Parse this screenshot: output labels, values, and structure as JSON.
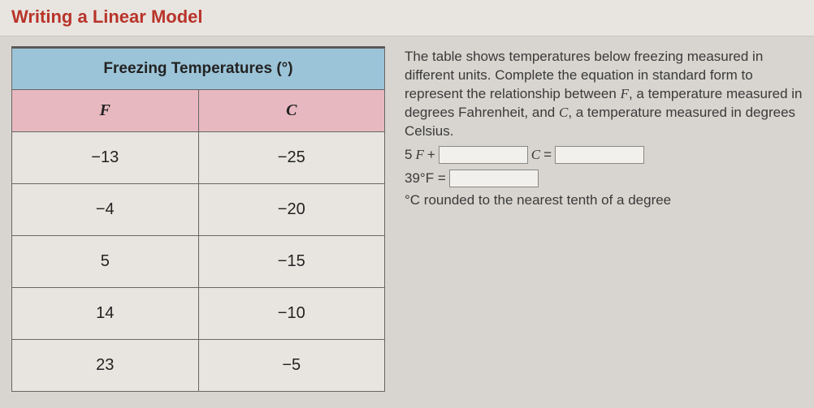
{
  "header": {
    "title": "Writing a Linear Model"
  },
  "table": {
    "title": "Freezing Temperatures (°)",
    "columns": {
      "col1": "F",
      "col2": "C"
    },
    "rows": [
      {
        "f": "−13",
        "c": "−25"
      },
      {
        "f": "−4",
        "c": "−20"
      },
      {
        "f": "5",
        "c": "−15"
      },
      {
        "f": "14",
        "c": "−10"
      },
      {
        "f": "23",
        "c": "−5"
      }
    ]
  },
  "prompt": {
    "text1": "The table shows temperatures below freezing measured in different units. Complete the equation in standard form to represent the relationship between ",
    "var1": "F",
    "text2": ", a temperature measured in degrees Fahrenheit, and ",
    "var2": "C",
    "text3": ", a temperature measured in degrees Celsius."
  },
  "equation1": {
    "pre": "5",
    "varF": "F",
    "plus": " + ",
    "varC": "C",
    "eq": " = "
  },
  "equation2": {
    "lhs": "39°F = ",
    "tail": "°C rounded to the nearest tenth of a degree"
  }
}
